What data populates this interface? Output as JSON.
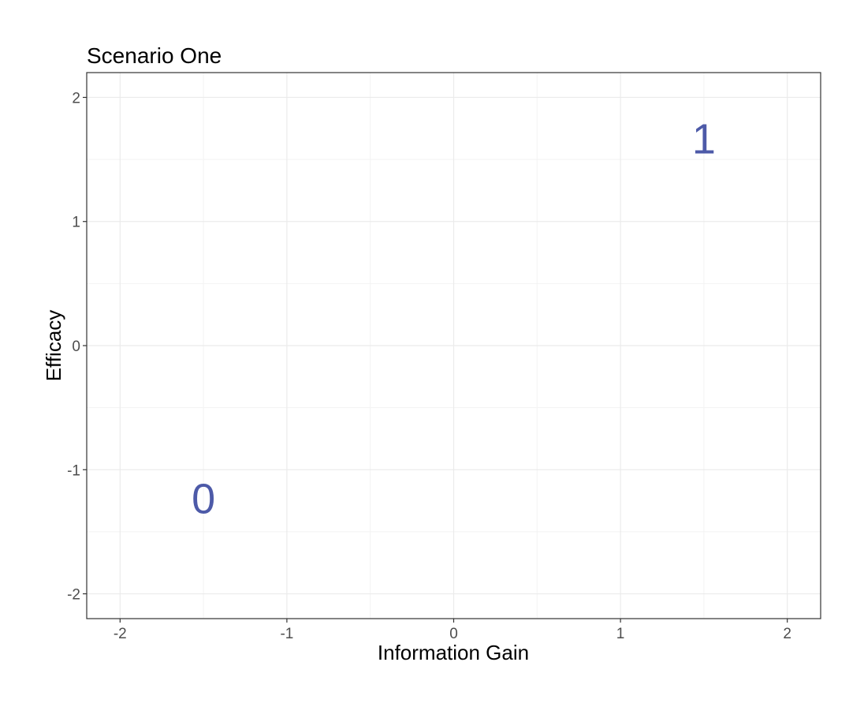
{
  "chart_data": {
    "type": "scatter",
    "title": "Scenario One",
    "xlabel": "Information Gain",
    "ylabel": "Efficacy",
    "xlim": [
      -2.2,
      2.2
    ],
    "ylim": [
      -2.2,
      2.2
    ],
    "x_ticks": [
      -2,
      -1,
      0,
      1,
      2
    ],
    "y_ticks": [
      -2,
      -1,
      0,
      1,
      2
    ],
    "x_tick_labels": [
      "-2",
      "-1",
      "0",
      "1",
      "2"
    ],
    "y_tick_labels": [
      "-2",
      "-1",
      "0",
      "1",
      "2"
    ],
    "grid": true,
    "points": [
      {
        "label": "0",
        "x": -1.5,
        "y": -1.23
      },
      {
        "label": "1",
        "x": 1.5,
        "y": 1.67
      }
    ],
    "colors": {
      "point_text": "#4d5aa8",
      "grid_major": "#ebebeb",
      "grid_minor": "#f3f3f3",
      "panel_border": "#333333"
    }
  }
}
